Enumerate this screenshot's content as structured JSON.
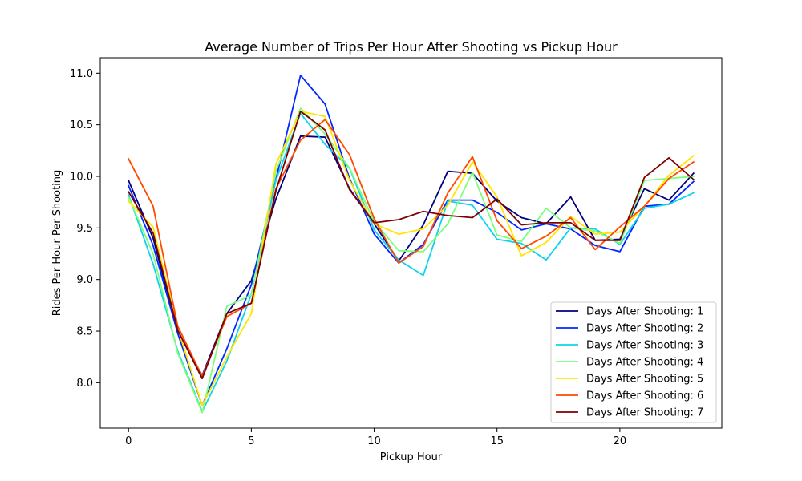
{
  "chart_data": {
    "type": "line",
    "title": "Average Number of Trips Per Hour After Shooting vs Pickup Hour",
    "xlabel": "Pickup Hour",
    "ylabel": "Rides Per Hour Per Shooting",
    "xlim": [
      -1.15,
      24.15
    ],
    "ylim": [
      7.56,
      11.15
    ],
    "xticks": [
      0,
      5,
      10,
      15,
      20
    ],
    "yticks": [
      8.0,
      8.5,
      9.0,
      9.5,
      10.0,
      10.5,
      11.0
    ],
    "ytick_labels": [
      "8.0",
      "8.5",
      "9.0",
      "9.5",
      "10.0",
      "10.5",
      "11.0"
    ],
    "grid": false,
    "legend_position": "lower-right",
    "x": [
      0,
      1,
      2,
      3,
      4,
      5,
      6,
      7,
      8,
      9,
      10,
      11,
      12,
      13,
      14,
      15,
      16,
      17,
      18,
      19,
      20,
      21,
      22,
      23
    ],
    "series": [
      {
        "name": "Days After Shooting: 1",
        "color": "#00007f",
        "values": [
          9.96,
          9.4,
          8.5,
          8.07,
          8.67,
          8.99,
          9.78,
          10.39,
          10.38,
          9.88,
          9.54,
          9.18,
          9.53,
          10.05,
          10.03,
          9.76,
          9.6,
          9.54,
          9.8,
          9.38,
          9.39,
          9.88,
          9.77,
          10.03
        ]
      },
      {
        "name": "Days After Shooting: 2",
        "color": "#0028ff",
        "values": [
          9.91,
          9.33,
          8.48,
          7.78,
          8.33,
          8.95,
          9.97,
          10.98,
          10.7,
          9.98,
          9.44,
          9.16,
          9.34,
          9.77,
          9.77,
          9.65,
          9.48,
          9.54,
          9.49,
          9.33,
          9.27,
          9.71,
          9.73,
          9.95
        ]
      },
      {
        "name": "Days After Shooting: 3",
        "color": "#0dd4ec",
        "values": [
          9.82,
          9.15,
          8.31,
          7.72,
          8.21,
          8.86,
          9.96,
          10.61,
          10.31,
          10.08,
          9.48,
          9.19,
          9.04,
          9.76,
          9.72,
          9.39,
          9.35,
          9.19,
          9.5,
          9.49,
          9.34,
          9.69,
          9.73,
          9.84
        ]
      },
      {
        "name": "Days After Shooting: 4",
        "color": "#7aff7b",
        "values": [
          9.8,
          9.25,
          8.29,
          7.71,
          8.74,
          8.85,
          10.05,
          10.66,
          10.41,
          10.08,
          9.56,
          9.28,
          9.27,
          9.54,
          10.04,
          9.43,
          9.37,
          9.69,
          9.5,
          9.47,
          9.35,
          9.96,
          9.98,
          10.0
        ]
      },
      {
        "name": "Days After Shooting: 5",
        "color": "#ffe500",
        "values": [
          9.76,
          9.51,
          8.53,
          7.78,
          8.25,
          8.67,
          10.12,
          10.63,
          10.58,
          9.96,
          9.54,
          9.44,
          9.49,
          9.72,
          10.14,
          9.8,
          9.23,
          9.36,
          9.61,
          9.44,
          9.46,
          9.71,
          10.01,
          10.2
        ]
      },
      {
        "name": "Days After Shooting: 6",
        "color": "#ff4a00",
        "values": [
          10.17,
          9.71,
          8.55,
          8.06,
          8.64,
          8.77,
          9.88,
          10.35,
          10.55,
          10.21,
          9.59,
          9.16,
          9.32,
          9.84,
          10.19,
          9.57,
          9.3,
          9.42,
          9.6,
          9.29,
          9.51,
          9.71,
          9.98,
          10.14
        ]
      },
      {
        "name": "Days After Shooting: 7",
        "color": "#7f0000",
        "values": [
          9.85,
          9.45,
          8.51,
          8.04,
          8.67,
          8.77,
          9.86,
          10.63,
          10.45,
          9.87,
          9.55,
          9.58,
          9.66,
          9.62,
          9.6,
          9.78,
          9.53,
          9.55,
          9.55,
          9.38,
          9.38,
          9.99,
          10.18,
          9.97
        ]
      }
    ]
  }
}
